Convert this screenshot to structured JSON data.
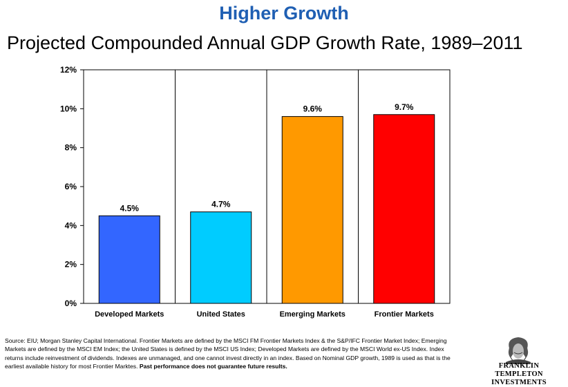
{
  "headline": "Higher Growth",
  "subtitle": "Projected Compounded Annual GDP Growth Rate, 1989–2011",
  "chart_data": {
    "type": "bar",
    "title": "Projected Compounded Annual GDP Growth Rate, 1989–2011",
    "categories": [
      "Developed Markets",
      "United States",
      "Emerging Markets",
      "Frontier Markets"
    ],
    "values": [
      4.5,
      4.7,
      9.6,
      9.7
    ],
    "value_labels": [
      "4.5%",
      "4.7%",
      "9.6%",
      "9.7%"
    ],
    "colors": [
      "#3366ff",
      "#00ccff",
      "#ff9900",
      "#ff0000"
    ],
    "yticks": [
      0,
      2,
      4,
      6,
      8,
      10,
      12
    ],
    "ytick_labels": [
      "0%",
      "2%",
      "4%",
      "6%",
      "8%",
      "10%",
      "12%"
    ],
    "ylim": [
      0,
      12
    ],
    "grid": false
  },
  "footnote": {
    "text": "Source: EIU; Morgan Stanley Capital International. Frontier Markets are defined by the MSCI FM Frontier Markets Index & the S&P/IFC Frontier Market Index; Emerging Markets are defined by the MSCI EM Index; the United States is defined by the MSCI US Index; Developed Markets are defined by the MSCI World ex-US Index. Index returns include reinvestment of dividends. Indexes are unmanaged, and one cannot invest directly in an index. Based on Nominal GDP growth, 1989 is used as that is the earliest available history for most Frontier Marktes. ",
    "bold": "Past performance does not guarantee future results."
  },
  "logo": {
    "line1": "FRANKLIN TEMPLETON",
    "line2": "INVESTMENTS"
  }
}
